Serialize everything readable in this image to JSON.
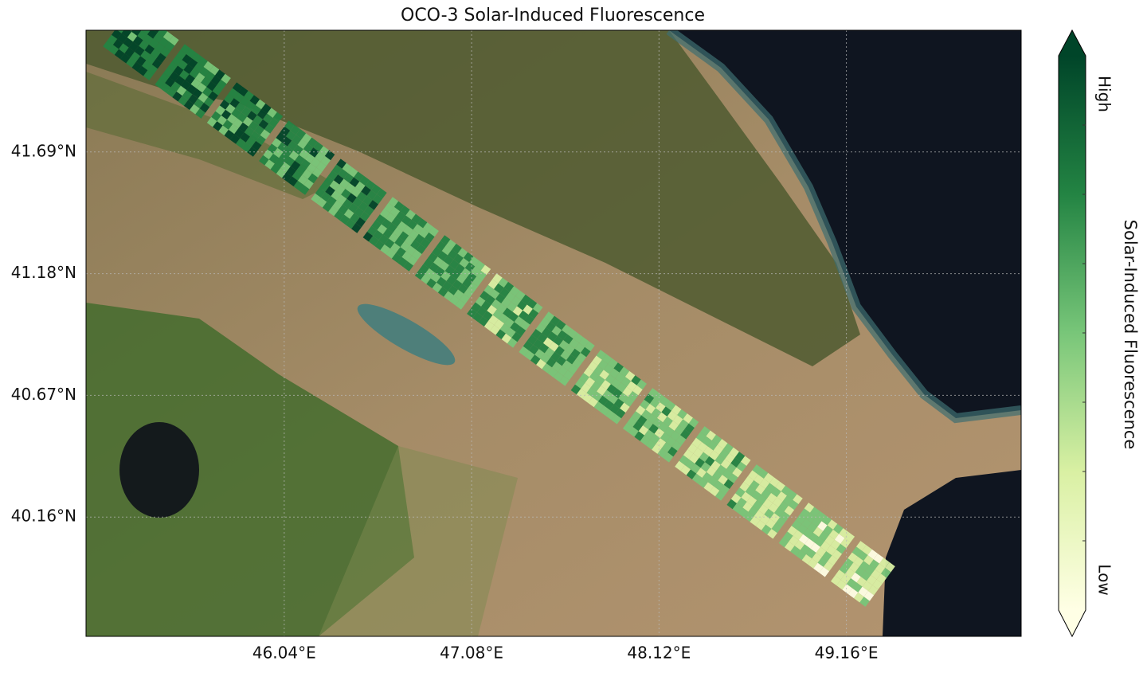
{
  "chart_data": {
    "type": "map",
    "title": "OCO-3 Solar-Induced Fluorescence",
    "xlim": [
      44.94,
      50.13
    ],
    "ylim": [
      39.66,
      42.2
    ],
    "xticks": [
      {
        "value": 46.04,
        "label": "46.04°E"
      },
      {
        "value": 47.08,
        "label": "47.08°E"
      },
      {
        "value": 48.12,
        "label": "48.12°E"
      },
      {
        "value": 49.16,
        "label": "49.16°E"
      }
    ],
    "yticks": [
      {
        "value": 40.16,
        "label": "40.16°N"
      },
      {
        "value": 40.67,
        "label": "40.67°N"
      },
      {
        "value": 41.18,
        "label": "41.18°N"
      },
      {
        "value": 41.69,
        "label": "41.69°N"
      }
    ],
    "grid": true,
    "colorbar": {
      "label": "Solar-Induced Fluorescence",
      "high": "High",
      "low": "Low",
      "colors": [
        "#ffffe5",
        "#d9f0a3",
        "#78c679",
        "#238443",
        "#004529"
      ]
    }
  }
}
